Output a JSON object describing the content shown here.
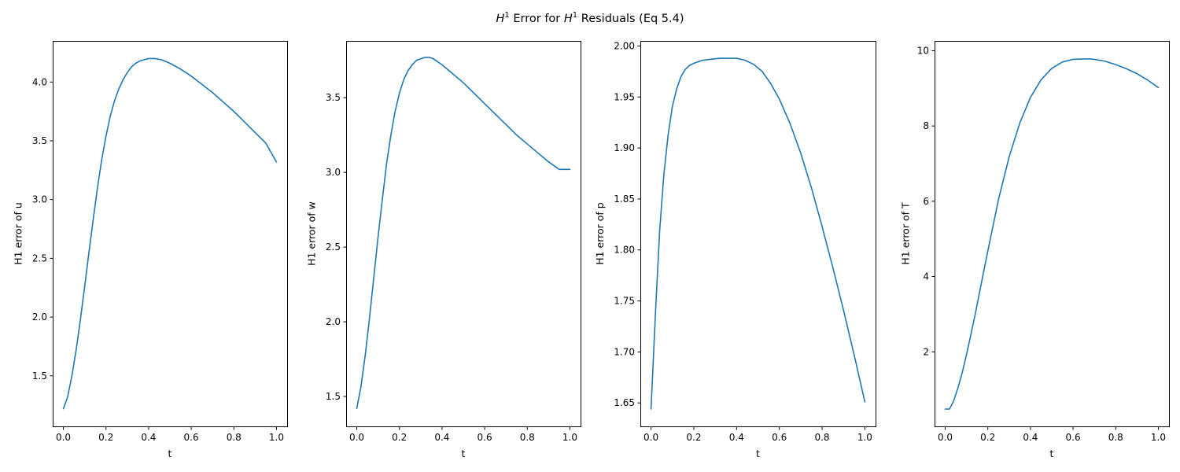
{
  "figure": {
    "title_prefix": "H",
    "title_sup1": "1",
    "title_middle": " Error for ",
    "title_h2": "H",
    "title_sup2": "1",
    "title_suffix": " Residuals (Eq 5.4)"
  },
  "colors": {
    "line": "#1f77b4"
  },
  "chart_data": [
    {
      "type": "line",
      "xlabel": "t",
      "ylabel": "H1 error of u",
      "xlim": [
        -0.05,
        1.05
      ],
      "ylim": [
        1.07,
        4.35
      ],
      "xticks": [
        0.0,
        0.2,
        0.4,
        0.6,
        0.8,
        1.0
      ],
      "xtick_labels": [
        "0.0",
        "0.2",
        "0.4",
        "0.6",
        "0.8",
        "1.0"
      ],
      "yticks": [
        1.5,
        2.0,
        2.5,
        3.0,
        3.5,
        4.0
      ],
      "ytick_labels": [
        "1.5",
        "2.0",
        "2.5",
        "3.0",
        "3.5",
        "4.0"
      ],
      "grid": false,
      "series": [
        {
          "x": [
            0.0,
            0.02,
            0.04,
            0.06,
            0.08,
            0.1,
            0.12,
            0.14,
            0.16,
            0.18,
            0.2,
            0.22,
            0.24,
            0.26,
            0.28,
            0.3,
            0.32,
            0.34,
            0.36,
            0.38,
            0.4,
            0.43,
            0.46,
            0.5,
            0.55,
            0.6,
            0.65,
            0.7,
            0.75,
            0.8,
            0.85,
            0.9,
            0.95,
            1.0
          ],
          "y": [
            1.22,
            1.32,
            1.5,
            1.72,
            1.98,
            2.26,
            2.55,
            2.83,
            3.1,
            3.34,
            3.54,
            3.71,
            3.84,
            3.94,
            4.02,
            4.08,
            4.13,
            4.16,
            4.18,
            4.19,
            4.2,
            4.2,
            4.19,
            4.16,
            4.11,
            4.05,
            3.98,
            3.91,
            3.83,
            3.75,
            3.66,
            3.57,
            3.48,
            3.32
          ]
        }
      ]
    },
    {
      "type": "line",
      "xlabel": "t",
      "ylabel": "H1 error of w",
      "xlim": [
        -0.05,
        1.05
      ],
      "ylim": [
        1.3,
        3.88
      ],
      "xticks": [
        0.0,
        0.2,
        0.4,
        0.6,
        0.8,
        1.0
      ],
      "xtick_labels": [
        "0.0",
        "0.2",
        "0.4",
        "0.6",
        "0.8",
        "1.0"
      ],
      "yticks": [
        1.5,
        2.0,
        2.5,
        3.0,
        3.5
      ],
      "ytick_labels": [
        "1.5",
        "2.0",
        "2.5",
        "3.0",
        "3.5"
      ],
      "grid": false,
      "series": [
        {
          "x": [
            0.0,
            0.02,
            0.04,
            0.06,
            0.08,
            0.1,
            0.12,
            0.14,
            0.16,
            0.18,
            0.2,
            0.22,
            0.24,
            0.26,
            0.28,
            0.3,
            0.32,
            0.34,
            0.36,
            0.38,
            0.4,
            0.45,
            0.5,
            0.55,
            0.6,
            0.65,
            0.7,
            0.75,
            0.8,
            0.85,
            0.9,
            0.95,
            1.0
          ],
          "y": [
            1.42,
            1.57,
            1.78,
            2.03,
            2.3,
            2.57,
            2.82,
            3.06,
            3.25,
            3.41,
            3.53,
            3.62,
            3.68,
            3.72,
            3.75,
            3.76,
            3.77,
            3.77,
            3.76,
            3.74,
            3.72,
            3.66,
            3.6,
            3.53,
            3.46,
            3.39,
            3.32,
            3.25,
            3.19,
            3.13,
            3.07,
            3.02,
            3.02
          ]
        }
      ]
    },
    {
      "type": "line",
      "xlabel": "t",
      "ylabel": "H1 error of p",
      "xlim": [
        -0.05,
        1.05
      ],
      "ylim": [
        1.627,
        2.005
      ],
      "xticks": [
        0.0,
        0.2,
        0.4,
        0.6,
        0.8,
        1.0
      ],
      "xtick_labels": [
        "0.0",
        "0.2",
        "0.4",
        "0.6",
        "0.8",
        "1.0"
      ],
      "yticks": [
        1.65,
        1.7,
        1.75,
        1.8,
        1.85,
        1.9,
        1.95,
        2.0
      ],
      "ytick_labels": [
        "1.65",
        "1.70",
        "1.75",
        "1.80",
        "1.85",
        "1.90",
        "1.95",
        "2.00"
      ],
      "grid": false,
      "series": [
        {
          "x": [
            0.0,
            0.02,
            0.04,
            0.06,
            0.08,
            0.1,
            0.12,
            0.14,
            0.16,
            0.18,
            0.2,
            0.24,
            0.28,
            0.32,
            0.36,
            0.4,
            0.44,
            0.48,
            0.52,
            0.56,
            0.6,
            0.65,
            0.7,
            0.75,
            0.8,
            0.85,
            0.9,
            0.95,
            1.0
          ],
          "y": [
            1.644,
            1.735,
            1.818,
            1.874,
            1.913,
            1.941,
            1.958,
            1.97,
            1.977,
            1.981,
            1.983,
            1.986,
            1.987,
            1.988,
            1.988,
            1.988,
            1.986,
            1.982,
            1.975,
            1.963,
            1.948,
            1.924,
            1.895,
            1.861,
            1.823,
            1.783,
            1.741,
            1.697,
            1.651
          ]
        }
      ]
    },
    {
      "type": "line",
      "xlabel": "t",
      "ylabel": "H1 error of T",
      "xlim": [
        -0.05,
        1.05
      ],
      "ylim": [
        0.02,
        10.26
      ],
      "xticks": [
        0.0,
        0.2,
        0.4,
        0.6,
        0.8,
        1.0
      ],
      "xtick_labels": [
        "0.0",
        "0.2",
        "0.4",
        "0.6",
        "0.8",
        "1.0"
      ],
      "yticks": [
        2,
        4,
        6,
        8,
        10
      ],
      "ytick_labels": [
        "2",
        "4",
        "6",
        "8",
        "10"
      ],
      "grid": false,
      "series": [
        {
          "x": [
            0.0,
            0.02,
            0.04,
            0.06,
            0.08,
            0.1,
            0.12,
            0.14,
            0.16,
            0.18,
            0.2,
            0.25,
            0.3,
            0.35,
            0.4,
            0.45,
            0.5,
            0.55,
            0.6,
            0.65,
            0.68,
            0.7,
            0.75,
            0.8,
            0.85,
            0.9,
            0.95,
            1.0
          ],
          "y": [
            0.48,
            0.48,
            0.7,
            1.05,
            1.45,
            1.93,
            2.45,
            2.98,
            3.55,
            4.12,
            4.68,
            6.05,
            7.18,
            8.08,
            8.76,
            9.23,
            9.53,
            9.7,
            9.77,
            9.78,
            9.78,
            9.77,
            9.72,
            9.63,
            9.52,
            9.39,
            9.22,
            9.02
          ]
        }
      ]
    }
  ]
}
